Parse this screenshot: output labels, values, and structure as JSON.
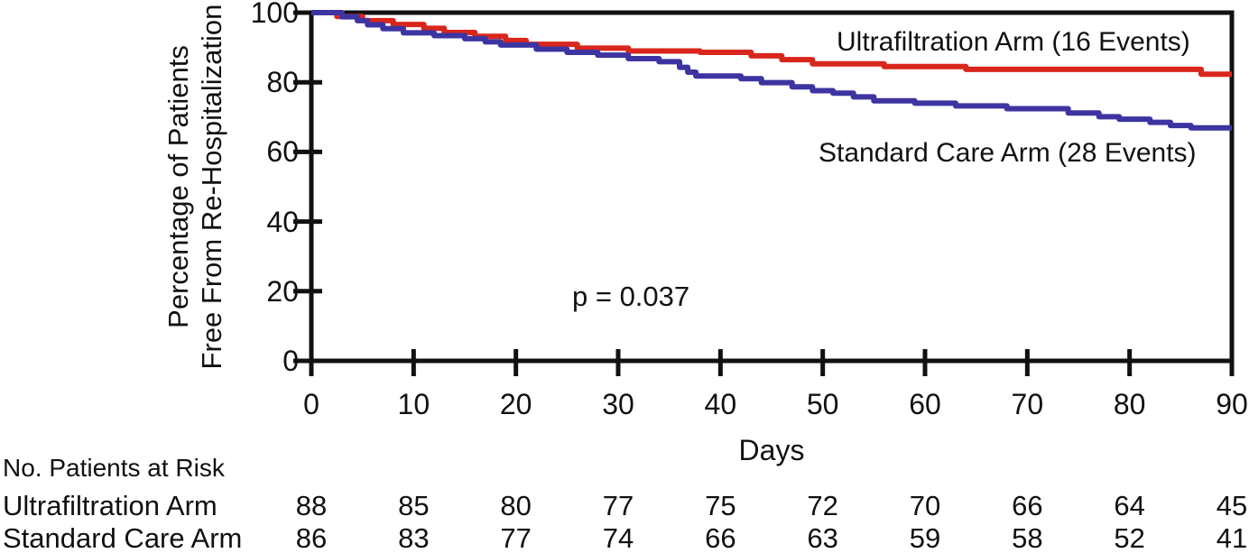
{
  "figure": {
    "y_axis_title_line1": "Percentage of Patients",
    "y_axis_title_line2": "Free From Re-Hospitalization",
    "x_axis_title": "Days",
    "p_value_label": "p = 0.037"
  },
  "legend": {
    "ultrafiltration_label": "Ultrafiltration Arm (16 Events)",
    "standard_label": "Standard Care Arm (28 Events)"
  },
  "colors": {
    "ultrafiltration": "#d9261c",
    "standard": "#3d34a1",
    "axis": "#111111"
  },
  "chart_data": {
    "type": "line",
    "subtype": "kaplan-meier-step",
    "title": "",
    "xlabel": "Days",
    "ylabel": "Percentage of Patients Free From Re-Hospitalization",
    "xlim": [
      0,
      90
    ],
    "ylim": [
      0,
      100
    ],
    "x_ticks": [
      0,
      10,
      20,
      30,
      40,
      50,
      60,
      70,
      80,
      90
    ],
    "y_ticks": [
      0,
      20,
      40,
      60,
      80,
      100
    ],
    "grid": false,
    "legend_position": "inline-annotations",
    "annotations": [
      {
        "text": "p = 0.037",
        "x": 31,
        "y": 19
      },
      {
        "text": "Ultrafiltration Arm (16 Events)",
        "x": 62,
        "y": 92
      },
      {
        "text": "Standard Care Arm (28 Events)",
        "x": 61,
        "y": 57
      }
    ],
    "series": [
      {
        "name": "Ultrafiltration Arm (16 Events)",
        "color": "#d9261c",
        "x": [
          0,
          2.5,
          5,
          8,
          11,
          13,
          16,
          19,
          21,
          26,
          31,
          38,
          43,
          46,
          49,
          56,
          64,
          87,
          90
        ],
        "y": [
          100,
          98.9,
          97.7,
          96.6,
          95.5,
          94.3,
          93.2,
          92.0,
          90.9,
          89.8,
          89.0,
          88.6,
          87.6,
          86.5,
          85.3,
          84.5,
          83.7,
          82.3,
          82.3
        ]
      },
      {
        "name": "Standard Care Arm (28 Events)",
        "color": "#3d34a1",
        "x": [
          0,
          3,
          4.5,
          5.5,
          7,
          9,
          12,
          15,
          17,
          18.5,
          22,
          25,
          28,
          31,
          34,
          36,
          36.8,
          37.6,
          42,
          44,
          47,
          49,
          51,
          53,
          55,
          59,
          63,
          68,
          74,
          77,
          79,
          82,
          84,
          86,
          90
        ],
        "y": [
          100,
          98.8,
          97.7,
          96.5,
          95.4,
          94.2,
          93.4,
          92.5,
          91.6,
          90.7,
          89.5,
          88.6,
          87.8,
          86.8,
          85.9,
          84.3,
          82.9,
          81.8,
          81.0,
          79.9,
          78.7,
          77.6,
          76.9,
          75.8,
          74.7,
          74.0,
          73.2,
          72.4,
          71.2,
          70.1,
          69.4,
          68.5,
          67.6,
          66.9,
          66.9
        ]
      }
    ]
  },
  "risk_table": {
    "title": "No. Patients at Risk",
    "days": [
      0,
      10,
      20,
      30,
      40,
      50,
      60,
      70,
      80,
      90
    ],
    "rows": [
      {
        "label": "Ultrafiltration Arm",
        "counts": [
          "88",
          "85",
          "80",
          "77",
          "75",
          "72",
          "70",
          "66",
          "64",
          "45"
        ]
      },
      {
        "label": "Standard Care Arm",
        "counts": [
          "86",
          "83",
          "77",
          "74",
          "66",
          "63",
          "59",
          "58",
          "52",
          "41"
        ]
      }
    ]
  }
}
